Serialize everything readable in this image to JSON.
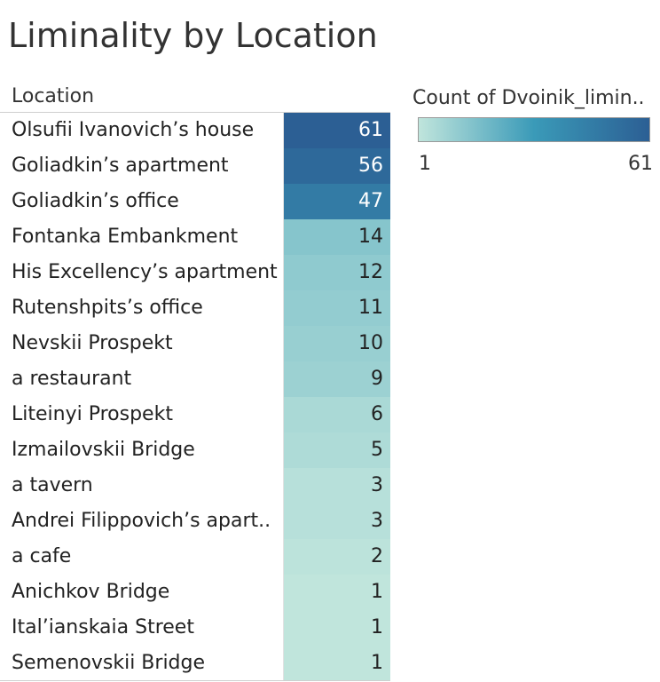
{
  "chart_data": {
    "type": "heatmap",
    "title": "Liminality by Location",
    "column_header": "Location",
    "legend": {
      "title": "Count of Dvoinik_limin..",
      "min_label": "1",
      "max_label": "61",
      "min": 1,
      "max": 61,
      "colors": [
        "#c0e5dc",
        "#3a9ab8",
        "#2c5f94"
      ]
    },
    "rows": [
      {
        "label": "Olsufii Ivanovich’s house",
        "value": 61
      },
      {
        "label": "Goliadkin’s apartment",
        "value": 56
      },
      {
        "label": "Goliadkin’s office",
        "value": 47
      },
      {
        "label": "Fontanka Embankment",
        "value": 14
      },
      {
        "label": "His Excellency’s apartment",
        "value": 12
      },
      {
        "label": "Rutenshpits’s office",
        "value": 11
      },
      {
        "label": "Nevskii Prospekt",
        "value": 10
      },
      {
        "label": "a restaurant",
        "value": 9
      },
      {
        "label": "Liteinyi Prospekt",
        "value": 6
      },
      {
        "label": "Izmailovskii Bridge",
        "value": 5
      },
      {
        "label": "a tavern",
        "value": 3
      },
      {
        "label": "Andrei Filippovich’s apart..",
        "value": 3
      },
      {
        "label": "a cafe",
        "value": 2
      },
      {
        "label": "Anichkov Bridge",
        "value": 1
      },
      {
        "label": "Ital’ianskaia Street",
        "value": 1
      },
      {
        "label": "Semenovskii Bridge",
        "value": 1
      }
    ]
  }
}
